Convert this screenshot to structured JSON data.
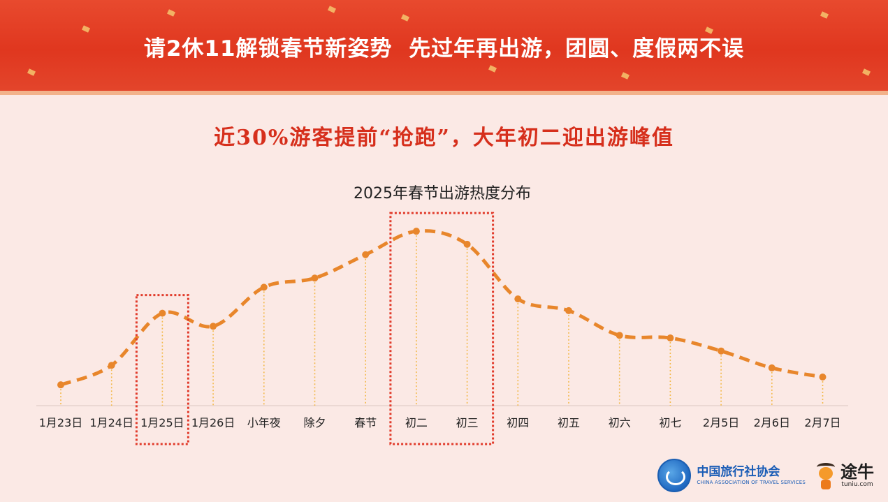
{
  "banner": {
    "title": "请2休11解锁春节新姿势  先过年再出游，团圆、度假两不误"
  },
  "subtitle": "近30%游客提前“抢跑”，大年初二迎出游峰值",
  "colors": {
    "banner_red": "#e0371f",
    "subtitle_red": "#d62f1c",
    "line_orange": "#e8862b",
    "drop_line_yellow": "#f3b94a",
    "highlight_box_red": "#e13b2b",
    "background": "#fbe9e5"
  },
  "chart_data": {
    "type": "line",
    "title": "2025年春节出游热度分布",
    "categories": [
      "1月23日",
      "1月24日",
      "1月25日",
      "1月26日",
      "小年夜",
      "除夕",
      "春节",
      "初二",
      "初三",
      "初四",
      "初五",
      "初六",
      "初七",
      "2月5日",
      "2月6日",
      "2月7日"
    ],
    "values": [
      8,
      15.5,
      35.5,
      30.5,
      45.5,
      49,
      58,
      67,
      62,
      41,
      36.5,
      27,
      26,
      21,
      14.5,
      11
    ],
    "ylim": [
      0,
      70
    ],
    "grid": false,
    "legend": "none",
    "highlighted_categories": [
      "1月25日",
      "初二",
      "初三"
    ]
  },
  "logos": {
    "cat_name_cn": "中国旅行社协会",
    "cat_name_en": "CHINA ASSOCIATION OF TRAVEL SERVICES",
    "tuniu_cn": "途牛",
    "tuniu_en": "tuniu.com"
  }
}
